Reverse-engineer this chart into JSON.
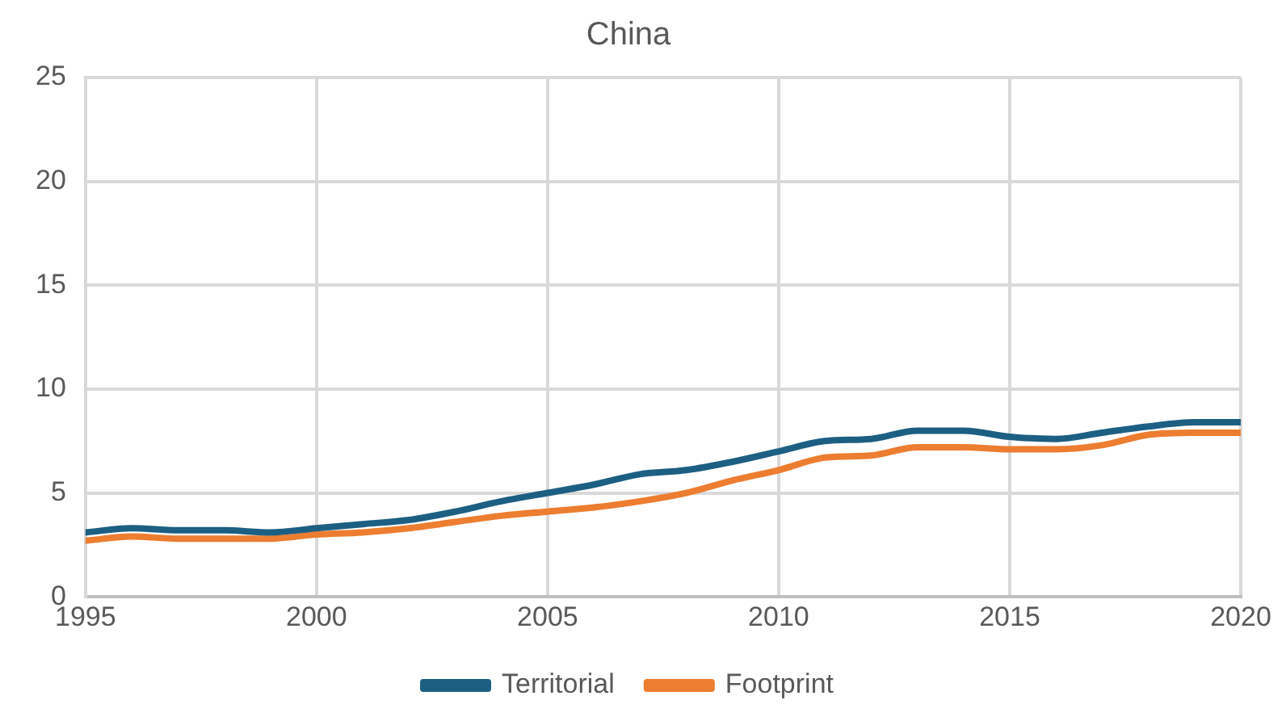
{
  "chart_data": {
    "type": "line",
    "title": "China",
    "x": [
      1995,
      1996,
      1997,
      1998,
      1999,
      2000,
      2001,
      2002,
      2003,
      2004,
      2005,
      2006,
      2007,
      2008,
      2009,
      2010,
      2011,
      2012,
      2013,
      2014,
      2015,
      2016,
      2017,
      2018,
      2019,
      2020
    ],
    "series": [
      {
        "name": "Territorial",
        "color": "#1d5f82",
        "values": [
          3.1,
          3.3,
          3.2,
          3.2,
          3.1,
          3.3,
          3.5,
          3.7,
          4.1,
          4.6,
          5.0,
          5.4,
          5.9,
          6.1,
          6.5,
          7.0,
          7.5,
          7.6,
          8.0,
          8.0,
          7.7,
          7.6,
          7.9,
          8.2,
          8.4,
          8.4
        ]
      },
      {
        "name": "Footprint",
        "color": "#ed7d31",
        "values": [
          2.7,
          2.9,
          2.8,
          2.8,
          2.8,
          3.0,
          3.1,
          3.3,
          3.6,
          3.9,
          4.1,
          4.3,
          4.6,
          5.0,
          5.6,
          6.1,
          6.7,
          6.8,
          7.2,
          7.2,
          7.1,
          7.1,
          7.3,
          7.8,
          7.9,
          7.9
        ]
      }
    ],
    "xlim": [
      1995,
      2020
    ],
    "xticks": [
      1995,
      2000,
      2005,
      2010,
      2015,
      2020
    ],
    "ylim": [
      0,
      25
    ],
    "yticks": [
      0,
      5,
      10,
      15,
      20,
      25
    ],
    "grid": true,
    "legend": "bottom",
    "marker": "none",
    "line_style": "solid"
  }
}
